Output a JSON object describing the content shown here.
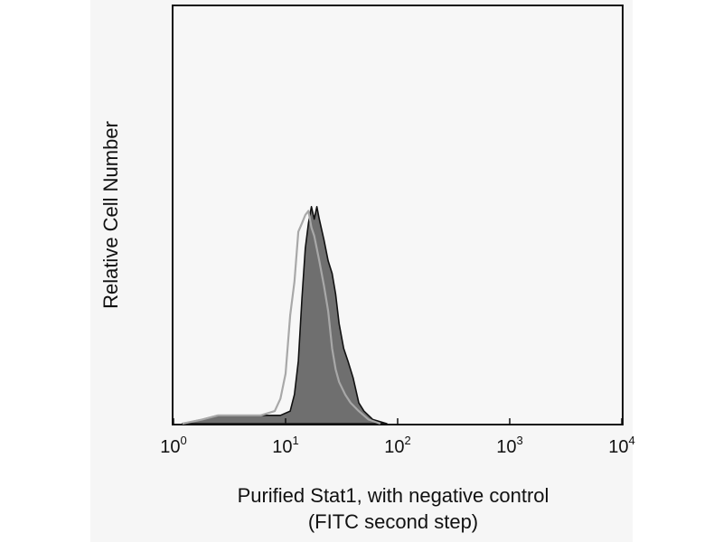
{
  "colors": {
    "panel": "#f6f6f6",
    "plot_background": "#f7f7f7",
    "stained_fill": "#6f6f6f",
    "stained_edge": "#111111",
    "control_line": "#a8a8a8"
  },
  "chart_data": {
    "type": "area",
    "ylabel": "Relative Cell Number",
    "xlabel_lines": [
      "Purified Stat1, with negative control",
      "(FITC second step)"
    ],
    "x_scale": "log",
    "xlim": [
      1,
      10000
    ],
    "ylim": [
      0,
      100
    ],
    "ticks": [
      {
        "base": "10",
        "exp": "0",
        "value": 1
      },
      {
        "base": "10",
        "exp": "1",
        "value": 10
      },
      {
        "base": "10",
        "exp": "2",
        "value": 100
      },
      {
        "base": "10",
        "exp": "3",
        "value": 1000
      },
      {
        "base": "10",
        "exp": "4",
        "value": 10000
      }
    ],
    "grid": false,
    "legend": "none",
    "series": [
      {
        "role": "stained",
        "style": "filled",
        "points": [
          [
            1.2,
            0
          ],
          [
            1.8,
            1
          ],
          [
            2.5,
            2
          ],
          [
            4,
            2
          ],
          [
            6,
            2
          ],
          [
            9,
            2
          ],
          [
            11,
            3
          ],
          [
            12,
            7
          ],
          [
            13,
            15
          ],
          [
            14,
            30
          ],
          [
            15,
            42
          ],
          [
            16,
            48
          ],
          [
            17,
            52
          ],
          [
            18,
            49
          ],
          [
            19,
            52
          ],
          [
            20,
            49
          ],
          [
            22,
            44
          ],
          [
            24,
            39
          ],
          [
            26,
            36
          ],
          [
            28,
            31
          ],
          [
            30,
            24
          ],
          [
            33,
            18
          ],
          [
            36,
            15
          ],
          [
            40,
            11
          ],
          [
            45,
            5
          ],
          [
            50,
            3
          ],
          [
            60,
            1
          ],
          [
            80,
            0
          ]
        ]
      },
      {
        "role": "negative control",
        "style": "line",
        "points": [
          [
            1.2,
            0
          ],
          [
            1.8,
            1
          ],
          [
            2.5,
            2
          ],
          [
            4,
            2
          ],
          [
            6,
            2
          ],
          [
            8,
            3
          ],
          [
            9,
            6
          ],
          [
            10,
            12
          ],
          [
            11,
            26
          ],
          [
            12,
            34
          ],
          [
            13,
            46
          ],
          [
            14,
            48
          ],
          [
            15,
            50
          ],
          [
            16,
            51
          ],
          [
            17,
            47
          ],
          [
            18,
            45
          ],
          [
            20,
            39
          ],
          [
            22,
            33
          ],
          [
            24,
            27
          ],
          [
            26,
            18
          ],
          [
            28,
            13
          ],
          [
            30,
            10
          ],
          [
            34,
            7
          ],
          [
            38,
            5
          ],
          [
            45,
            3
          ],
          [
            55,
            1
          ],
          [
            70,
            0
          ]
        ]
      }
    ]
  }
}
